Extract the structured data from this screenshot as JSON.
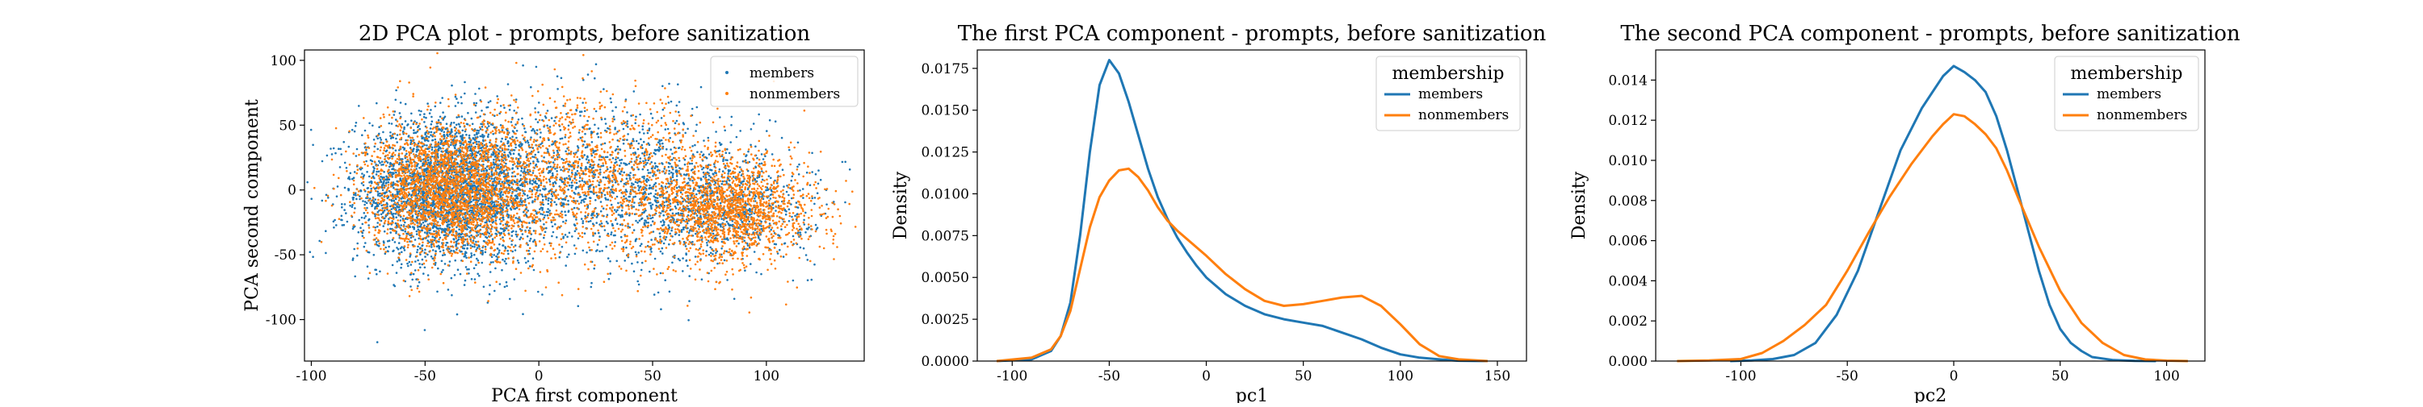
{
  "chart_data": [
    {
      "type": "scatter",
      "title": "2D PCA plot - prompts, before sanitization",
      "xlabel": "PCA first component",
      "ylabel": "PCA second component",
      "xlim": [
        -103,
        143
      ],
      "ylim": [
        -132,
        108
      ],
      "xticks": [
        -100,
        -50,
        0,
        50,
        100
      ],
      "yticks": [
        -100,
        -50,
        0,
        50,
        100
      ],
      "legend": {
        "position": "top-right",
        "entries": [
          {
            "label": "members",
            "color": "#1f77b4"
          },
          {
            "label": "nonmembers",
            "color": "#ff7f0e"
          }
        ]
      },
      "series": [
        {
          "name": "members",
          "color": "#1f77b4",
          "clusters": [
            {
              "cx": -40,
              "cy": 0,
              "sx": 20,
              "sy": 28,
              "weight": 0.6
            },
            {
              "cx": 30,
              "cy": 5,
              "sx": 35,
              "sy": 30,
              "weight": 0.25
            },
            {
              "cx": 80,
              "cy": -15,
              "sx": 20,
              "sy": 20,
              "weight": 0.15
            }
          ]
        },
        {
          "name": "nonmembers",
          "color": "#ff7f0e",
          "clusters": [
            {
              "cx": -40,
              "cy": 0,
              "sx": 18,
              "sy": 25,
              "weight": 0.45
            },
            {
              "cx": 20,
              "cy": 10,
              "sx": 30,
              "sy": 30,
              "weight": 0.25
            },
            {
              "cx": 85,
              "cy": -15,
              "sx": 18,
              "sy": 20,
              "weight": 0.3
            }
          ]
        }
      ]
    },
    {
      "type": "line",
      "title": "The first PCA component - prompts, before sanitization",
      "xlabel": "pc1",
      "ylabel": "Density",
      "xlim": [
        -118,
        165
      ],
      "ylim": [
        0,
        0.0186
      ],
      "xticks": [
        -100,
        -50,
        0,
        50,
        100,
        150
      ],
      "yticks": [
        0,
        0.0025,
        0.005,
        0.0075,
        0.01,
        0.0125,
        0.015,
        0.0175
      ],
      "ytick_labels": [
        "0.0000",
        "0.0025",
        "0.0050",
        "0.0075",
        "0.0100",
        "0.0125",
        "0.0150",
        "0.0175"
      ],
      "legend": {
        "title": "membership",
        "position": "top-right",
        "entries": [
          {
            "label": "members",
            "color": "#1f77b4"
          },
          {
            "label": "nonmembers",
            "color": "#ff7f0e"
          }
        ]
      },
      "series": [
        {
          "name": "members",
          "color": "#1f77b4",
          "x": [
            -108,
            -90,
            -80,
            -75,
            -70,
            -65,
            -60,
            -55,
            -50,
            -45,
            -40,
            -35,
            -30,
            -25,
            -20,
            -15,
            -10,
            -5,
            0,
            10,
            20,
            30,
            40,
            50,
            60,
            70,
            80,
            90,
            100,
            110,
            120,
            130,
            145
          ],
          "y": [
            0,
            0.0001,
            0.0006,
            0.0015,
            0.0035,
            0.0075,
            0.0125,
            0.0165,
            0.018,
            0.0172,
            0.0155,
            0.0135,
            0.0115,
            0.0098,
            0.0085,
            0.0074,
            0.0065,
            0.0057,
            0.005,
            0.004,
            0.0033,
            0.0028,
            0.0025,
            0.0023,
            0.0021,
            0.0017,
            0.0013,
            0.0008,
            0.0004,
            0.0002,
            0.0001,
            2e-05,
            0
          ]
        },
        {
          "name": "nonmembers",
          "color": "#ff7f0e",
          "x": [
            -108,
            -90,
            -80,
            -75,
            -70,
            -65,
            -60,
            -55,
            -50,
            -45,
            -40,
            -35,
            -30,
            -25,
            -20,
            -15,
            -10,
            -5,
            0,
            10,
            20,
            30,
            40,
            50,
            60,
            70,
            80,
            90,
            100,
            110,
            120,
            130,
            145
          ],
          "y": [
            0,
            0.0002,
            0.0007,
            0.0015,
            0.003,
            0.0055,
            0.008,
            0.0098,
            0.0108,
            0.0114,
            0.0115,
            0.011,
            0.0102,
            0.0092,
            0.0084,
            0.0078,
            0.0073,
            0.0068,
            0.0063,
            0.0052,
            0.0043,
            0.0036,
            0.0033,
            0.0034,
            0.0036,
            0.0038,
            0.0039,
            0.0033,
            0.0022,
            0.001,
            0.0003,
            0.0001,
            0
          ]
        }
      ]
    },
    {
      "type": "line",
      "title": "The second PCA component - prompts, before sanitization",
      "xlabel": "pc2",
      "ylabel": "Density",
      "xlim": [
        -140,
        118
      ],
      "ylim": [
        0,
        0.0155
      ],
      "xticks": [
        -100,
        -50,
        0,
        50,
        100
      ],
      "yticks": [
        0,
        0.002,
        0.004,
        0.006,
        0.008,
        0.01,
        0.012,
        0.014
      ],
      "ytick_labels": [
        "0.000",
        "0.002",
        "0.004",
        "0.006",
        "0.008",
        "0.010",
        "0.012",
        "0.014"
      ],
      "legend": {
        "title": "membership",
        "position": "top-right",
        "entries": [
          {
            "label": "members",
            "color": "#1f77b4"
          },
          {
            "label": "nonmembers",
            "color": "#ff7f0e"
          }
        ]
      },
      "series": [
        {
          "name": "members",
          "color": "#1f77b4",
          "x": [
            -105,
            -95,
            -85,
            -75,
            -65,
            -55,
            -45,
            -35,
            -25,
            -15,
            -10,
            -5,
            0,
            5,
            10,
            15,
            20,
            25,
            30,
            35,
            40,
            45,
            50,
            55,
            60,
            65,
            75,
            85,
            95
          ],
          "y": [
            0,
            3e-05,
            0.0001,
            0.0003,
            0.0009,
            0.0023,
            0.0045,
            0.0075,
            0.0105,
            0.0126,
            0.0134,
            0.0142,
            0.0147,
            0.0144,
            0.014,
            0.0134,
            0.0122,
            0.0105,
            0.0085,
            0.0065,
            0.0045,
            0.0028,
            0.0016,
            0.0009,
            0.0005,
            0.0002,
            5e-05,
            1e-05,
            0
          ]
        },
        {
          "name": "nonmembers",
          "color": "#ff7f0e",
          "x": [
            -130,
            -115,
            -100,
            -90,
            -80,
            -70,
            -60,
            -50,
            -40,
            -30,
            -20,
            -10,
            -5,
            0,
            5,
            10,
            15,
            20,
            25,
            30,
            40,
            50,
            55,
            60,
            70,
            80,
            90,
            100,
            110
          ],
          "y": [
            0,
            3e-05,
            0.0001,
            0.0004,
            0.001,
            0.0018,
            0.0028,
            0.0045,
            0.0064,
            0.0082,
            0.0098,
            0.0112,
            0.0118,
            0.0123,
            0.0122,
            0.0118,
            0.0113,
            0.0106,
            0.0095,
            0.0082,
            0.0057,
            0.0035,
            0.0027,
            0.0019,
            0.0009,
            0.0003,
            8e-05,
            2e-05,
            0
          ]
        }
      ]
    }
  ]
}
